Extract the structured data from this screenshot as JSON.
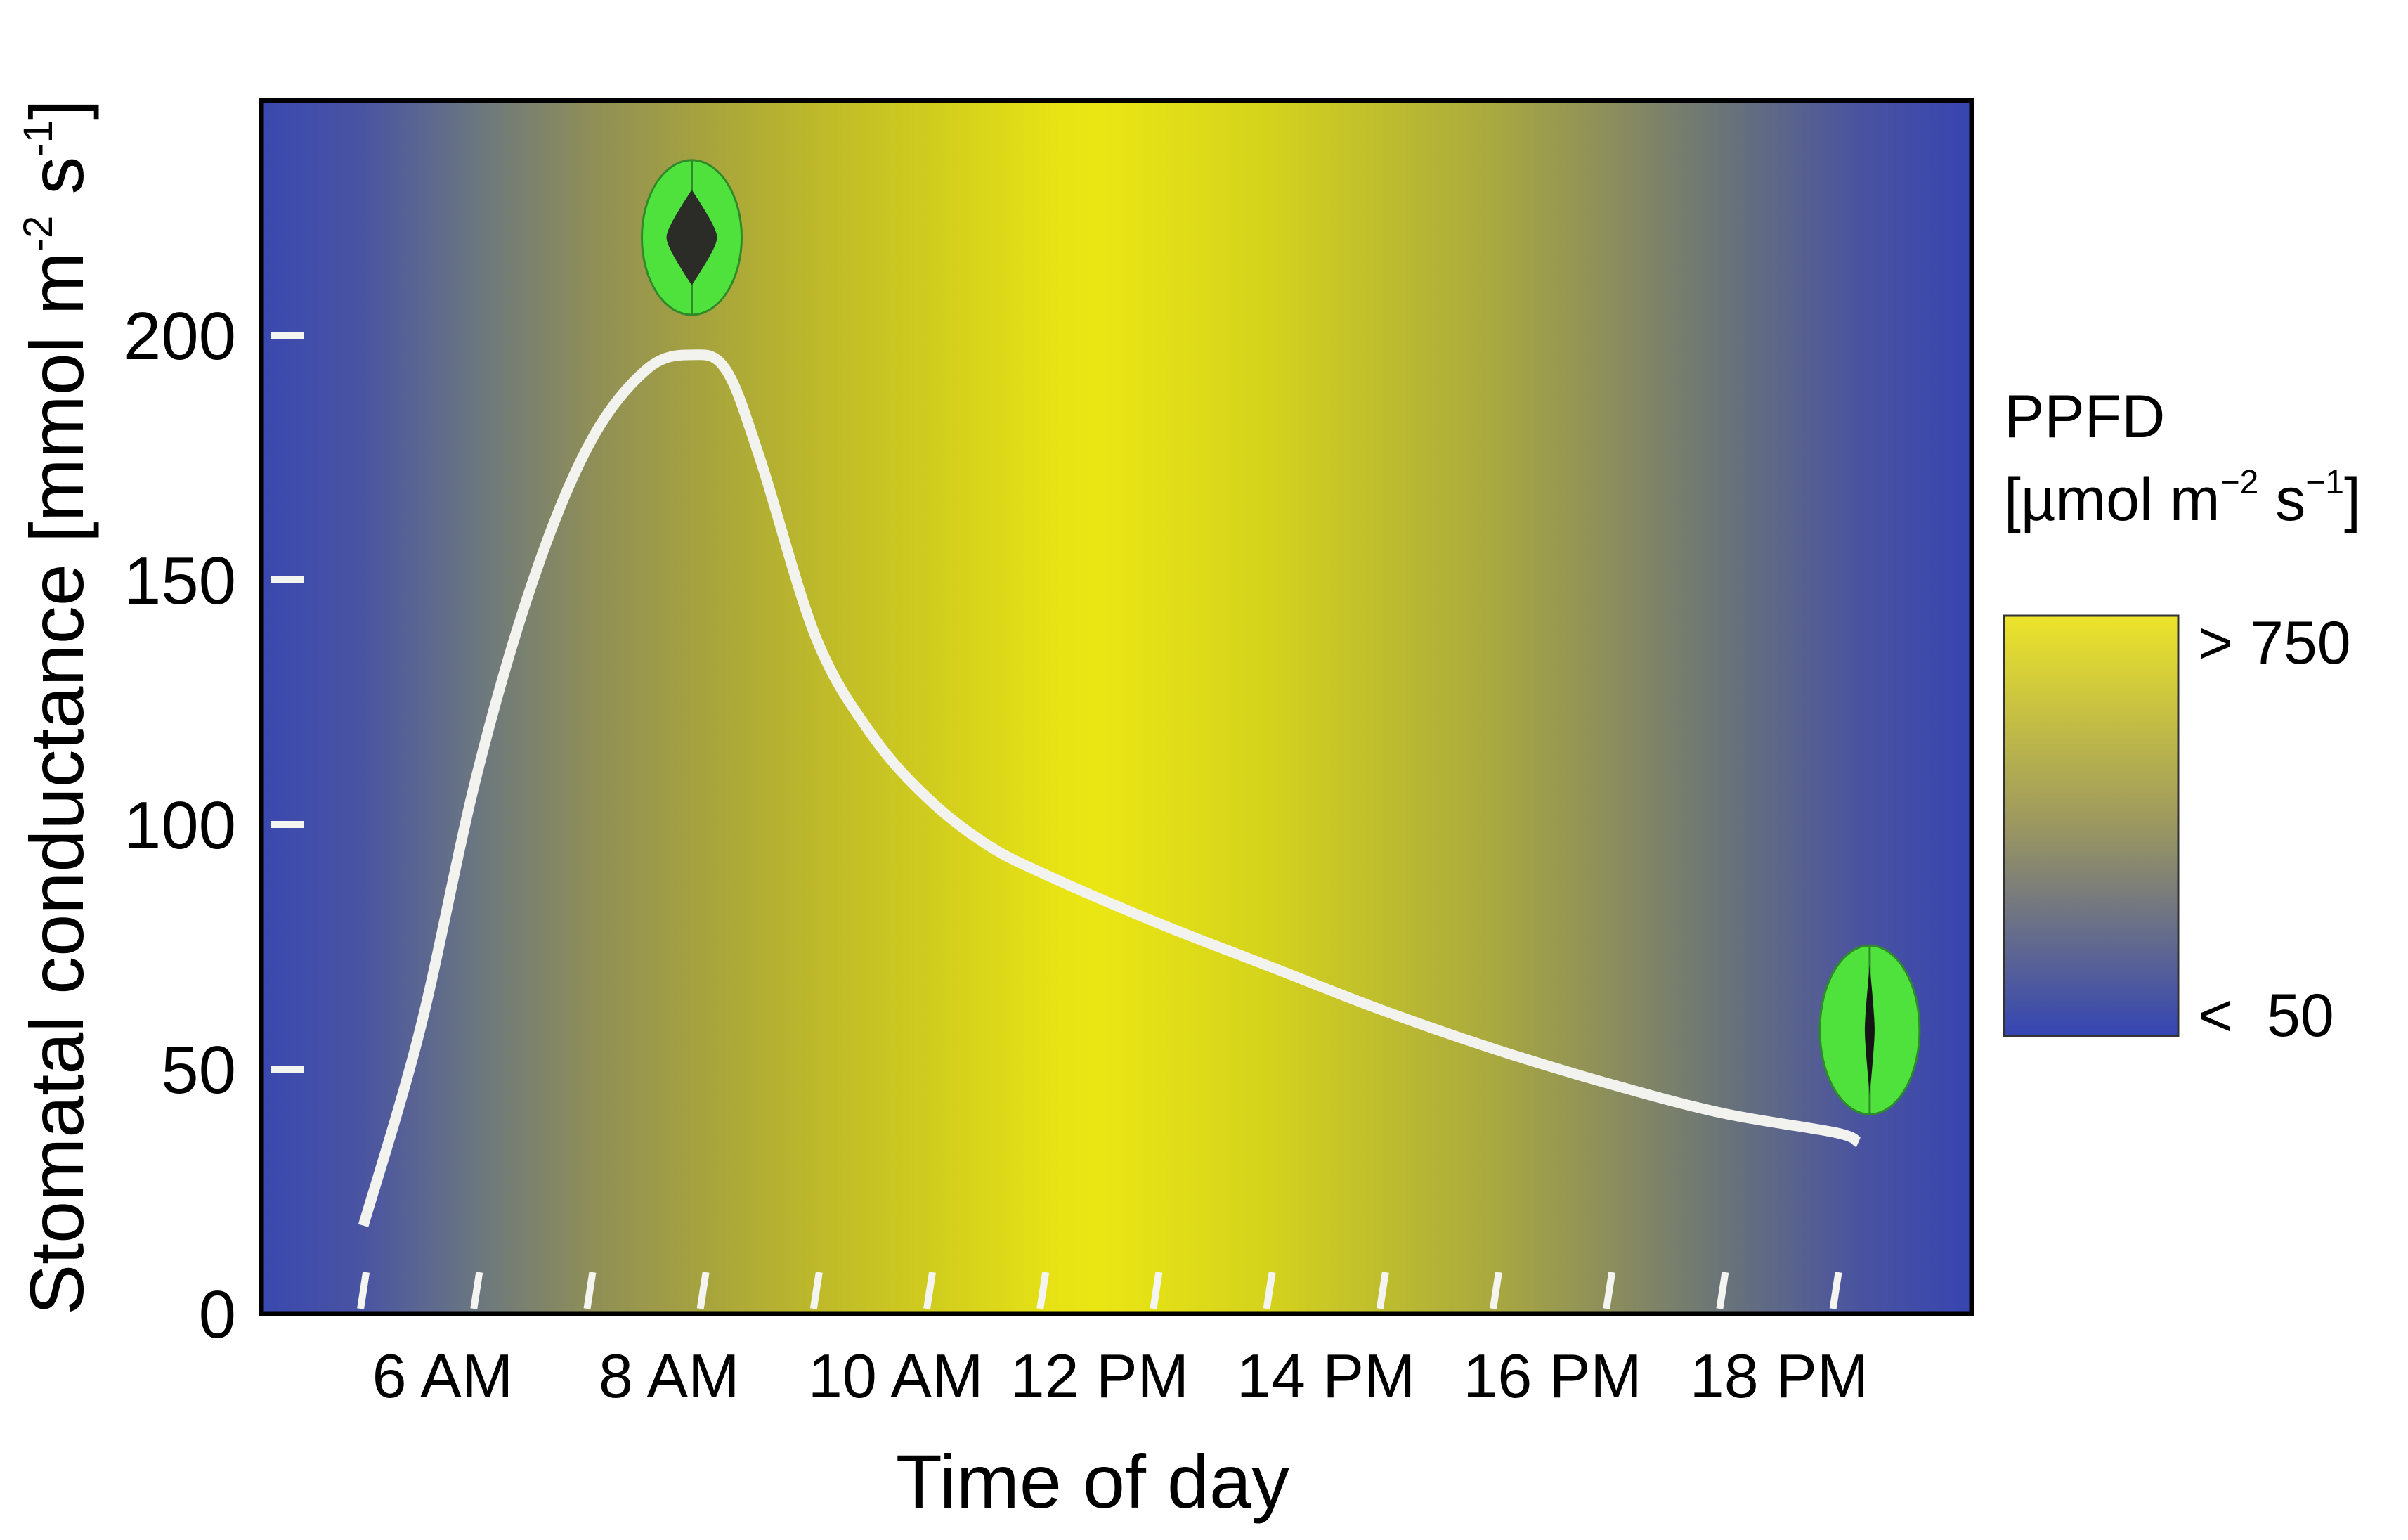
{
  "chart_data": {
    "type": "line",
    "title": "",
    "xlabel": "Time of day",
    "ylabel": "Stomatal conductance [mmol m",
    "ylabel_sup1": "-2",
    "ylabel_mid": " s",
    "ylabel_sup2": "-1",
    "ylabel_end": "]",
    "ylim": [
      0,
      248
    ],
    "y_ticks": [
      0,
      50,
      100,
      150,
      200
    ],
    "xlim": [
      4.1,
      19.2
    ],
    "x_tick_hours": [
      5,
      6,
      7,
      8,
      9,
      10,
      11,
      12,
      13,
      14,
      15,
      16,
      17,
      18
    ],
    "x_tick_labels": [
      {
        "hour": 5.7,
        "label": "6 AM"
      },
      {
        "hour": 7.7,
        "label": "8 AM"
      },
      {
        "hour": 9.7,
        "label": "10 AM"
      },
      {
        "hour": 11.5,
        "label": "12 PM"
      },
      {
        "hour": 13.5,
        "label": "14 PM"
      },
      {
        "hour": 15.5,
        "label": "16 PM"
      },
      {
        "hour": 17.5,
        "label": "18 PM"
      }
    ],
    "grid": false,
    "series": [
      {
        "color": "#f2f2ee",
        "x": [
          5.0,
          5.5,
          6.0,
          6.5,
          7.0,
          7.5,
          7.9,
          8.2,
          8.5,
          9.0,
          9.5,
          10.0,
          10.5,
          11.0,
          12.0,
          13.0,
          14.0,
          15.0,
          16.0,
          17.0,
          18.0,
          18.2
        ],
        "y": [
          18,
          58,
          110,
          150,
          178,
          193,
          196,
          193,
          175,
          138,
          118,
          105,
          96,
          90,
          80,
          71,
          62,
          54,
          47,
          41,
          37,
          35
        ]
      }
    ],
    "background": {
      "variable": "PPFD",
      "stops": [
        {
          "hour": 4.1,
          "color": "#3a48b0"
        },
        {
          "hour": 5.0,
          "color": "#4a54a2"
        },
        {
          "hour": 6.0,
          "color": "#6b7780"
        },
        {
          "hour": 7.0,
          "color": "#8e8e58"
        },
        {
          "hour": 8.0,
          "color": "#a6a33e"
        },
        {
          "hour": 9.0,
          "color": "#bdb92a"
        },
        {
          "hour": 10.0,
          "color": "#d0cc1e"
        },
        {
          "hour": 11.2,
          "color": "#e8e414"
        },
        {
          "hour": 11.5,
          "color": "#eae614"
        },
        {
          "hour": 13.0,
          "color": "#d4d21c"
        },
        {
          "hour": 15.0,
          "color": "#a8a840"
        },
        {
          "hour": 16.0,
          "color": "#8c8e5c"
        },
        {
          "hour": 17.0,
          "color": "#6a7478"
        },
        {
          "hour": 18.2,
          "color": "#4a53a0"
        },
        {
          "hour": 19.2,
          "color": "#3845b0"
        }
      ]
    },
    "colorbar": {
      "title": "PPFD",
      "unit_prefix": "[µmol m",
      "unit_sup1": "−2",
      "unit_mid": " s",
      "unit_sup2": "−1",
      "unit_end": "]",
      "high_label": "> 750",
      "low_label": "<  50",
      "high_color": "#ece42a",
      "mid_color": "#9b9760",
      "low_color": "#3445b3"
    },
    "annotations": [
      {
        "kind": "stoma-open-icon",
        "hour": 7.9,
        "value": 220
      },
      {
        "kind": "stoma-closed-icon",
        "hour": 18.3,
        "value": 58
      }
    ]
  }
}
